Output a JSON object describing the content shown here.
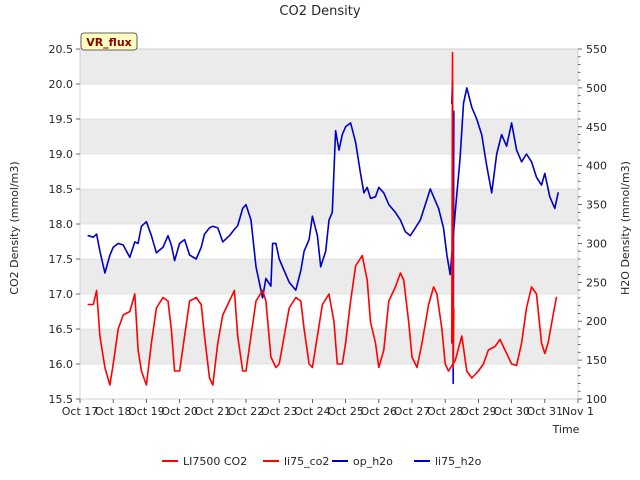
{
  "chart_data": {
    "type": "line",
    "title": "CO2 Density",
    "xlabel": "Time",
    "ylabel_left": "CO2 Density (mmol/m3)",
    "ylabel_right": "H2O Density (mmol/m3)",
    "badge": "VR_flux",
    "x_ticks": [
      "Oct 17",
      "Oct 18",
      "Oct 19",
      "Oct 20",
      "Oct 21",
      "Oct 22",
      "Oct 23",
      "Oct 24",
      "Oct 25",
      "Oct 26",
      "Oct 27",
      "Oct 28",
      "Oct 29",
      "Oct 30",
      "Oct 31",
      "Nov 1"
    ],
    "xlim": [
      17,
      32
    ],
    "ylim_left": [
      15.5,
      20.5
    ],
    "yticks_left": [
      "15.5",
      "16.0",
      "16.5",
      "17.0",
      "17.5",
      "18.0",
      "18.5",
      "19.0",
      "19.5",
      "20.0",
      "20.5"
    ],
    "ylim_right": [
      100,
      550
    ],
    "yticks_right": [
      "100",
      "150",
      "200",
      "250",
      "300",
      "350",
      "400",
      "450",
      "500",
      "550"
    ],
    "colors": {
      "li7500_co2": "#ff0000",
      "li75_co2": "#ff0000",
      "op_h2o": "#0000cc",
      "li75_h2o": "#0000cc",
      "badge_bg": "#ffffc0",
      "band": "#ebebeb"
    },
    "series": [
      {
        "name": "LI7500 CO2",
        "axis": "left",
        "x": [
          28.2,
          28.22,
          28.24,
          28.26
        ],
        "values": [
          16.3,
          20.45,
          15.95,
          16.8
        ]
      },
      {
        "name": "li75_co2",
        "axis": "left",
        "x": [
          17.25,
          17.4,
          17.5,
          17.6,
          17.75,
          17.9,
          18.0,
          18.15,
          18.3,
          18.5,
          18.65,
          18.75,
          18.85,
          19.0,
          19.15,
          19.3,
          19.5,
          19.65,
          19.75,
          19.85,
          20.0,
          20.15,
          20.3,
          20.5,
          20.65,
          20.75,
          20.9,
          21.0,
          21.15,
          21.3,
          21.5,
          21.65,
          21.75,
          21.9,
          22.0,
          22.15,
          22.3,
          22.5,
          22.6,
          22.75,
          22.9,
          23.0,
          23.15,
          23.3,
          23.5,
          23.65,
          23.75,
          23.9,
          24.0,
          24.15,
          24.3,
          24.5,
          24.65,
          24.75,
          24.9,
          25.0,
          25.15,
          25.3,
          25.5,
          25.65,
          25.75,
          25.9,
          26.0,
          26.15,
          26.3,
          26.5,
          26.65,
          26.75,
          26.9,
          27.0,
          27.15,
          27.3,
          27.5,
          27.65,
          27.75,
          27.9,
          28.0,
          28.1,
          28.3,
          28.5,
          28.65,
          28.8,
          29.0,
          29.15,
          29.3,
          29.5,
          29.65,
          29.8,
          30.0,
          30.15,
          30.3,
          30.45,
          30.6,
          30.75,
          30.9,
          31.0,
          31.1,
          31.25,
          31.35
        ],
        "values": [
          16.85,
          16.85,
          17.05,
          16.4,
          15.95,
          15.7,
          16.0,
          16.5,
          16.7,
          16.75,
          17.0,
          16.2,
          15.9,
          15.7,
          16.3,
          16.8,
          16.95,
          16.9,
          16.5,
          15.9,
          15.9,
          16.4,
          16.9,
          16.95,
          16.85,
          16.4,
          15.8,
          15.7,
          16.3,
          16.7,
          16.9,
          17.05,
          16.4,
          15.9,
          15.9,
          16.4,
          16.9,
          17.05,
          16.9,
          16.1,
          15.95,
          16.0,
          16.4,
          16.8,
          16.95,
          16.9,
          16.5,
          16.0,
          15.95,
          16.4,
          16.85,
          17.0,
          16.6,
          16.0,
          16.0,
          16.3,
          16.9,
          17.4,
          17.55,
          17.2,
          16.6,
          16.3,
          15.95,
          16.2,
          16.9,
          17.1,
          17.3,
          17.2,
          16.6,
          16.1,
          15.95,
          16.3,
          16.85,
          17.1,
          17.0,
          16.5,
          16.0,
          15.9,
          16.05,
          16.4,
          15.9,
          15.8,
          15.9,
          16.0,
          16.2,
          16.25,
          16.35,
          16.2,
          16.0,
          15.98,
          16.3,
          16.8,
          17.1,
          17.0,
          16.3,
          16.15,
          16.3,
          16.7,
          16.95
        ]
      },
      {
        "name": "op_h2o",
        "axis": "right",
        "x": [
          28.2,
          28.22,
          28.24,
          28.26
        ],
        "values": [
          480,
          510,
          120,
          470
        ]
      },
      {
        "name": "li75_h2o",
        "axis": "right",
        "x": [
          17.25,
          17.4,
          17.5,
          17.6,
          17.75,
          17.9,
          18.0,
          18.15,
          18.3,
          18.5,
          18.65,
          18.75,
          18.85,
          19.0,
          19.15,
          19.3,
          19.5,
          19.65,
          19.75,
          19.85,
          20.0,
          20.15,
          20.3,
          20.5,
          20.65,
          20.75,
          20.9,
          21.0,
          21.15,
          21.3,
          21.5,
          21.65,
          21.75,
          21.9,
          22.0,
          22.15,
          22.3,
          22.5,
          22.6,
          22.75,
          22.8,
          22.9,
          23.0,
          23.15,
          23.3,
          23.5,
          23.65,
          23.75,
          23.9,
          24.0,
          24.15,
          24.25,
          24.4,
          24.5,
          24.6,
          24.7,
          24.8,
          24.9,
          25.0,
          25.15,
          25.3,
          25.45,
          25.55,
          25.65,
          25.75,
          25.9,
          26.0,
          26.15,
          26.3,
          26.5,
          26.65,
          26.8,
          26.95,
          27.1,
          27.25,
          27.4,
          27.55,
          27.65,
          27.8,
          27.95,
          28.05,
          28.15,
          28.3,
          28.45,
          28.55,
          28.65,
          28.8,
          28.95,
          29.1,
          29.25,
          29.4,
          29.55,
          29.7,
          29.85,
          30.0,
          30.15,
          30.3,
          30.45,
          30.6,
          30.75,
          30.9,
          31.0,
          31.15,
          31.3,
          31.4
        ],
        "values": [
          310,
          308,
          312,
          290,
          262,
          285,
          295,
          300,
          298,
          282,
          302,
          300,
          322,
          328,
          310,
          288,
          295,
          310,
          298,
          278,
          300,
          305,
          285,
          280,
          295,
          312,
          320,
          322,
          320,
          302,
          310,
          318,
          323,
          345,
          350,
          330,
          270,
          230,
          255,
          245,
          300,
          300,
          280,
          265,
          250,
          240,
          265,
          290,
          305,
          335,
          310,
          270,
          290,
          330,
          340,
          445,
          420,
          440,
          450,
          455,
          430,
          390,
          365,
          372,
          358,
          360,
          372,
          365,
          350,
          340,
          330,
          315,
          310,
          320,
          330,
          350,
          370,
          360,
          345,
          320,
          285,
          260,
          340,
          410,
          480,
          500,
          475,
          460,
          440,
          400,
          365,
          415,
          440,
          425,
          455,
          420,
          405,
          415,
          405,
          385,
          375,
          390,
          360,
          345,
          365
        ]
      }
    ]
  }
}
